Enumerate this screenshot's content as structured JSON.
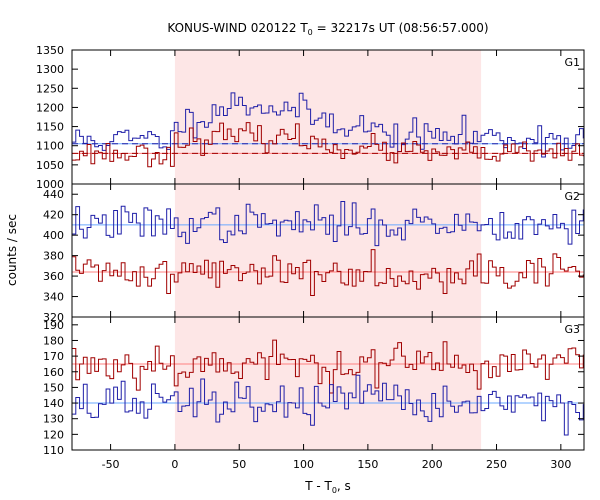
{
  "chart_data": {
    "type": "line",
    "title_main": "KONUS-WIND 020122 T",
    "title_sub": "0",
    "title_rest": " = 32217s UT (08:56:57.000)",
    "ylabel": "counts / sec",
    "xlabel_main": "T - T",
    "xlabel_sub": "0",
    "xlabel_rest": ", s",
    "xlim": [
      -80,
      318
    ],
    "x_ticks": [
      -50,
      0,
      50,
      100,
      150,
      200,
      250,
      300
    ],
    "highlight_range": [
      0,
      238
    ],
    "colors": {
      "blue": "#1f1fa8",
      "red": "#a00000",
      "light_blue": "#6aa8ff",
      "light_red": "#ff8080",
      "shade": "#fde6e6"
    },
    "panels": [
      {
        "label": "G1",
        "ylim": [
          1000,
          1350
        ],
        "y_ticks": [
          1000,
          1050,
          1100,
          1150,
          1200,
          1250,
          1300,
          1350
        ],
        "bin_start": -80,
        "bin_width": 2.944,
        "series": [
          {
            "color": "blue",
            "background_level": 1105,
            "mean": 1105,
            "segments": [
              {
                "from": -80,
                "to": 0,
                "level": 1115
              },
              {
                "from": 0,
                "to": 30,
                "level": 1150,
                "to_level": 1190
              },
              {
                "from": 30,
                "to": 55,
                "level": 1190,
                "to_level": 1220
              },
              {
                "from": 55,
                "to": 100,
                "level": 1210,
                "to_level": 1190
              },
              {
                "from": 100,
                "to": 160,
                "level": 1180,
                "to_level": 1140
              },
              {
                "from": 160,
                "to": 240,
                "level": 1125
              },
              {
                "from": 240,
                "to": 318,
                "level": 1120
              }
            ],
            "noise": 20,
            "seed": 11
          },
          {
            "color": "red",
            "background_level": 1080,
            "mean": 1080,
            "segments": [
              {
                "from": -80,
                "to": 0,
                "level": 1080
              },
              {
                "from": 0,
                "to": 40,
                "level": 1110,
                "to_level": 1125
              },
              {
                "from": 40,
                "to": 100,
                "level": 1125,
                "to_level": 1120
              },
              {
                "from": 100,
                "to": 160,
                "level": 1110,
                "to_level": 1090
              },
              {
                "from": 160,
                "to": 240,
                "level": 1085,
                "to_level": 1075
              },
              {
                "from": 240,
                "to": 318,
                "level": 1080
              }
            ],
            "noise": 16,
            "seed": 23
          }
        ]
      },
      {
        "label": "G2",
        "ylim": [
          320,
          450
        ],
        "y_ticks": [
          320,
          340,
          360,
          380,
          400,
          420,
          440
        ],
        "bin_start": -80,
        "bin_width": 2.944,
        "series": [
          {
            "color": "blue",
            "background_level": 410,
            "mean": 410,
            "segments": [
              {
                "from": -80,
                "to": 318,
                "level": 411
              }
            ],
            "noise": 9,
            "seed": 37
          },
          {
            "color": "red",
            "background_level": 364,
            "mean": 364,
            "segments": [
              {
                "from": -80,
                "to": 318,
                "level": 364
              }
            ],
            "noise": 9,
            "seed": 41
          }
        ]
      },
      {
        "label": "G3",
        "ylim": [
          110,
          195
        ],
        "y_ticks": [
          110,
          120,
          130,
          140,
          150,
          160,
          170,
          180,
          190
        ],
        "bin_start": -80,
        "bin_width": 2.944,
        "series": [
          {
            "color": "red",
            "background_level": 165,
            "mean": 165,
            "segments": [
              {
                "from": -80,
                "to": 318,
                "level": 165
              }
            ],
            "noise": 7,
            "seed": 53
          },
          {
            "color": "blue",
            "background_level": 140,
            "mean": 140,
            "segments": [
              {
                "from": -80,
                "to": 318,
                "level": 140
              }
            ],
            "noise": 7,
            "seed": 67
          }
        ]
      }
    ]
  }
}
